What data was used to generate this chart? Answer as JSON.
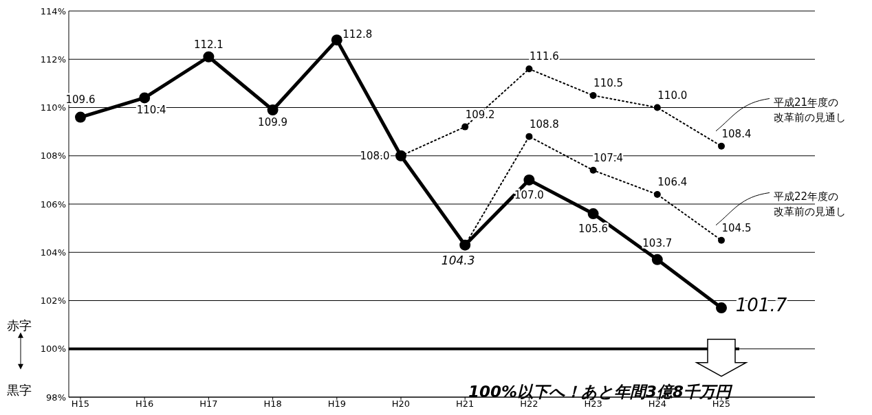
{
  "chart_data": {
    "type": "line",
    "categories": [
      "H15",
      "H16",
      "H17",
      "H18",
      "H19",
      "H20",
      "H21",
      "H22",
      "H23",
      "H24",
      "H25"
    ],
    "series": [
      {
        "name": "平成21年度の改革前の見通し",
        "color": "#000000",
        "line_style": "dotted",
        "values": [
          null,
          null,
          null,
          null,
          null,
          108.0,
          109.2,
          111.6,
          110.5,
          110.0,
          108.4
        ],
        "value_labels": [
          null,
          null,
          null,
          null,
          null,
          null,
          "109.2",
          "111.6",
          "110.5",
          "110.0",
          "108.4"
        ]
      },
      {
        "name": "平成22年度の改革前の見通し",
        "color": "#000000",
        "line_style": "dotted",
        "values": [
          null,
          null,
          null,
          null,
          null,
          null,
          104.3,
          108.8,
          107.4,
          106.4,
          104.5
        ],
        "value_labels": [
          null,
          null,
          null,
          null,
          null,
          null,
          null,
          "108.8",
          "107.4",
          "106.4",
          "104.5"
        ]
      },
      {
        "color": "#000000",
        "line_style": "solid",
        "values": [
          109.6,
          110.4,
          112.1,
          109.9,
          112.8,
          108.0,
          104.3,
          107.0,
          105.6,
          103.7,
          101.7
        ],
        "value_labels": [
          "109.6",
          "110.4",
          "112.1",
          "109.9",
          "112.8",
          "108.0",
          "104.3",
          "107.0",
          "105.6",
          "103.7",
          "101.7"
        ]
      }
    ],
    "ylim": [
      98,
      114
    ],
    "yticks": [
      {
        "value": 98,
        "label": "98%"
      },
      {
        "value": 100,
        "label": "100%"
      },
      {
        "value": 102,
        "label": "102%"
      },
      {
        "value": 104,
        "label": "104%"
      },
      {
        "value": 106,
        "label": "106%"
      },
      {
        "value": 108,
        "label": "108%"
      },
      {
        "value": 110,
        "label": "110%"
      },
      {
        "value": 112,
        "label": "112%"
      },
      {
        "value": 114,
        "label": "114%"
      }
    ],
    "grid": "y",
    "marker": "circle",
    "ref_lines": [
      {
        "axis": "y",
        "value": 100,
        "color": "#000000",
        "line_style": "solid"
      }
    ],
    "annotations": [
      "赤字",
      "黒字",
      "100%以下へ！あと年間3億8千万円"
    ]
  }
}
